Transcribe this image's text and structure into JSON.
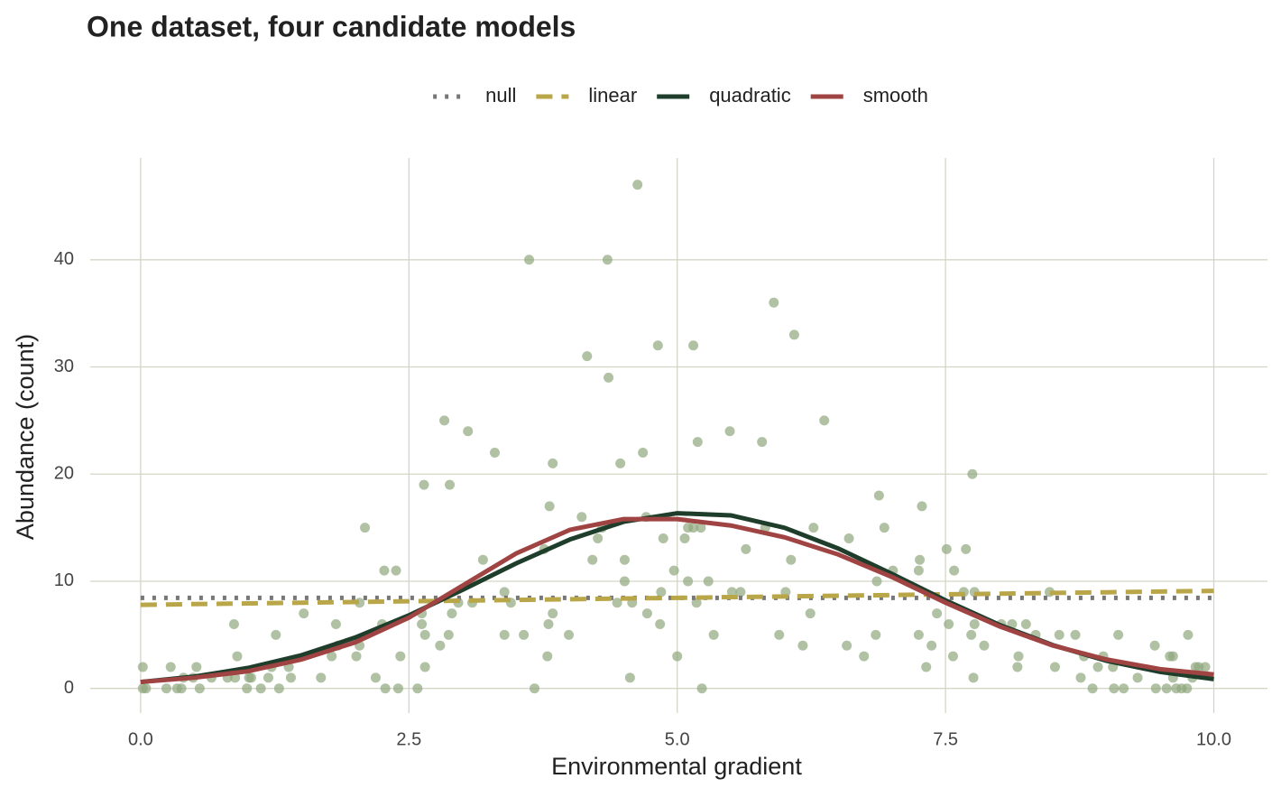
{
  "chart_data": {
    "type": "scatter",
    "title": "One dataset, four candidate models",
    "x_label": "Environmental gradient",
    "y_label": "Abundance (count)",
    "xlim": [
      -0.47,
      10.5
    ],
    "ylim": [
      -2.3,
      49.5
    ],
    "xticks": [
      {
        "value": 0,
        "label": "0.0"
      },
      2.5,
      {
        "value": 5,
        "label": "5.0"
      },
      7.5,
      {
        "value": 10,
        "label": "10.0"
      }
    ],
    "yticks": [
      0,
      10,
      20,
      30,
      40
    ],
    "grid": true,
    "legend_position": "top",
    "points": {
      "color": "#8fa67e",
      "x": [
        0.02,
        0.02,
        0.05,
        0.24,
        0.28,
        0.34,
        0.38,
        0.4,
        0.49,
        0.52,
        0.55,
        0.66,
        0.81,
        0.87,
        0.88,
        0.9,
        0.99,
        1.01,
        1.03,
        1.12,
        1.19,
        1.22,
        1.26,
        1.29,
        1.38,
        1.4,
        1.52,
        1.68,
        1.78,
        1.82,
        1.84,
        2.01,
        2.04,
        2.04,
        2.09,
        2.19,
        2.25,
        2.28,
        2.27,
        2.38,
        2.4,
        2.42,
        2.58,
        2.62,
        2.62,
        2.64,
        2.65,
        2.65,
        2.79,
        2.83,
        2.87,
        2.88,
        2.9,
        2.96,
        3.05,
        3.09,
        3.19,
        3.3,
        3.39,
        3.39,
        3.45,
        3.57,
        3.62,
        3.67,
        3.76,
        3.79,
        3.8,
        3.81,
        3.84,
        3.84,
        3.99,
        4.11,
        4.16,
        4.21,
        4.26,
        4.3,
        4.35,
        4.36,
        4.44,
        4.47,
        4.51,
        4.51,
        4.56,
        4.58,
        4.63,
        4.68,
        4.71,
        4.72,
        4.82,
        4.84,
        4.85,
        4.87,
        4.97,
        5.0,
        5.07,
        5.1,
        5.1,
        5.15,
        5.15,
        5.18,
        5.19,
        5.22,
        5.23,
        5.29,
        5.34,
        5.49,
        5.51,
        5.59,
        5.64,
        5.79,
        5.82,
        5.9,
        5.95,
        6.01,
        6.06,
        6.09,
        6.17,
        6.24,
        6.27,
        6.37,
        6.58,
        6.6,
        6.74,
        6.85,
        6.86,
        6.88,
        6.93,
        7.01,
        7.25,
        7.25,
        7.26,
        7.28,
        7.32,
        7.37,
        7.42,
        7.51,
        7.53,
        7.57,
        7.58,
        7.67,
        7.69,
        7.74,
        7.75,
        7.76,
        7.77,
        7.77,
        7.86,
        8.02,
        8.12,
        8.17,
        8.18,
        8.25,
        8.34,
        8.47,
        8.52,
        8.56,
        8.71,
        8.76,
        8.79,
        8.87,
        8.92,
        8.97,
        9.06,
        9.07,
        9.11,
        9.16,
        9.29,
        9.45,
        9.46,
        9.56,
        9.59,
        9.62,
        9.62,
        9.65,
        9.7,
        9.75,
        9.76,
        9.8,
        9.83,
        9.86,
        9.92
      ],
      "y": [
        2,
        0,
        0,
        0,
        2,
        0,
        0,
        1,
        1,
        2,
        0,
        1,
        1,
        6,
        1,
        3,
        0,
        1,
        1,
        0,
        1,
        2,
        5,
        0,
        2,
        1,
        7,
        1,
        3,
        6,
        4,
        3,
        8,
        4,
        15,
        1,
        6,
        0,
        11,
        11,
        0,
        3,
        0,
        7,
        6,
        19,
        5,
        2,
        4,
        25,
        5,
        19,
        7,
        8,
        24,
        8,
        12,
        22,
        9,
        5,
        8,
        5,
        40,
        0,
        13,
        3,
        6,
        17,
        7,
        21,
        5,
        16,
        31,
        12,
        14,
        15,
        40,
        29,
        8,
        21,
        12,
        10,
        1,
        8,
        47,
        22,
        16,
        7,
        32,
        6,
        9,
        14,
        11,
        3,
        14,
        15,
        10,
        32,
        15,
        8,
        23,
        15,
        0,
        10,
        5,
        24,
        9,
        9,
        13,
        23,
        15,
        36,
        5,
        9,
        12,
        33,
        4,
        7,
        15,
        25,
        4,
        14,
        3,
        5,
        10,
        18,
        15,
        11,
        5,
        11,
        12,
        17,
        2,
        4,
        7,
        13,
        6,
        3,
        11,
        9,
        13,
        5,
        20,
        1,
        6,
        9,
        4,
        6,
        6,
        2,
        3,
        6,
        5,
        9,
        2,
        5,
        5,
        1,
        3,
        0,
        2,
        3,
        2,
        0,
        5,
        0,
        1,
        4,
        0,
        0,
        3,
        3,
        1,
        0,
        0,
        0,
        5,
        1,
        2,
        2,
        2
      ]
    },
    "curve_x": [
      0,
      0.5,
      1,
      1.5,
      2,
      2.5,
      3,
      3.5,
      4,
      4.5,
      5,
      5.5,
      6,
      6.5,
      7,
      7.5,
      8,
      8.5,
      9,
      9.5,
      10
    ],
    "series": [
      {
        "name": "null",
        "color": "#777777",
        "style": "dotted",
        "values": [
          8.45,
          8.45,
          8.45,
          8.45,
          8.45,
          8.45,
          8.45,
          8.45,
          8.45,
          8.45,
          8.45,
          8.45,
          8.45,
          8.45,
          8.45,
          8.45,
          8.45,
          8.45,
          8.45,
          8.45,
          8.45
        ]
      },
      {
        "name": "linear",
        "color": "#b9a648",
        "style": "dashed",
        "values": [
          7.8,
          7.87,
          7.93,
          8.0,
          8.06,
          8.13,
          8.19,
          8.26,
          8.32,
          8.39,
          8.45,
          8.52,
          8.58,
          8.65,
          8.71,
          8.78,
          8.84,
          8.91,
          8.97,
          9.04,
          9.1
        ]
      },
      {
        "name": "quadratic",
        "color": "#1f3d2b",
        "style": "solid",
        "values": [
          0.6,
          1.1,
          1.91,
          3.1,
          4.75,
          6.82,
          9.2,
          11.67,
          13.9,
          15.55,
          16.35,
          16.15,
          14.99,
          13.06,
          10.69,
          8.22,
          5.94,
          4.04,
          2.58,
          1.54,
          0.87
        ]
      },
      {
        "name": "smooth",
        "color": "#a04343",
        "style": "solid",
        "values": [
          0.6,
          1.0,
          1.6,
          2.7,
          4.3,
          6.6,
          9.6,
          12.6,
          14.8,
          15.8,
          15.8,
          15.2,
          14.1,
          12.5,
          10.4,
          8.0,
          5.8,
          4.0,
          2.7,
          1.8,
          1.3
        ]
      }
    ]
  }
}
